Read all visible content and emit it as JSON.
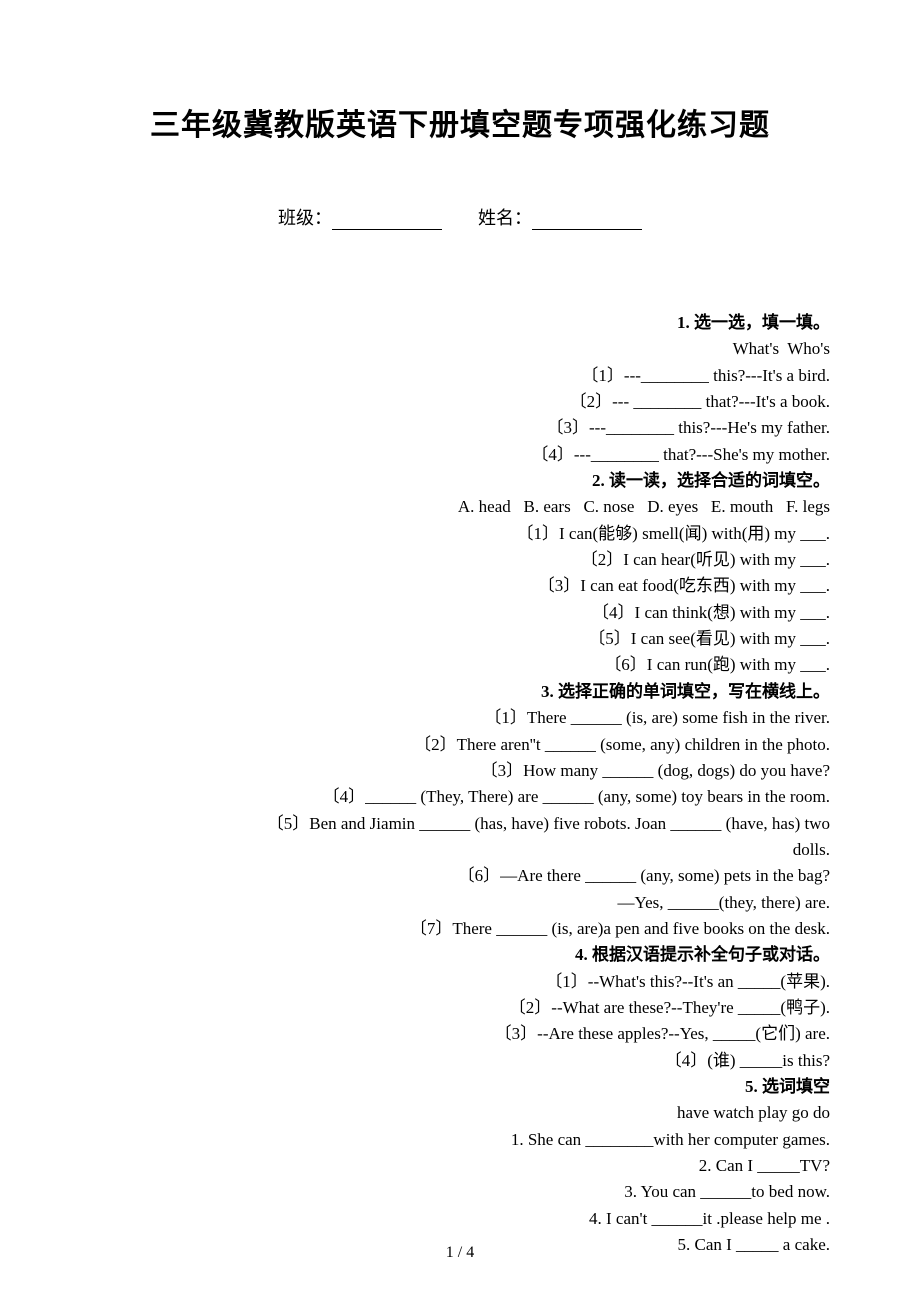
{
  "title": "三年级冀教版英语下册填空题专项强化练习题",
  "header": {
    "class_label": "班级：",
    "name_label": "姓名："
  },
  "sections": {
    "s1": {
      "heading": "1. 选一选，填一填。",
      "words": "What's  Who's",
      "q1": "〔1〕---________ this?---It's a bird.",
      "q2": "〔2〕--- ________ that?---It's a book.",
      "q3": "〔3〕---________ this?---He's my father.",
      "q4": "〔4〕---________ that?---She's my mother."
    },
    "s2": {
      "heading": "2. 读一读，选择合适的词填空。",
      "options": "A. head   B. ears   C. nose   D. eyes   E. mouth   F. legs",
      "q1": "〔1〕I can(能够) smell(闻) with(用) my ___.",
      "q2": "〔2〕I can hear(听见) with my ___.",
      "q3": "〔3〕I can eat food(吃东西) with my ___.",
      "q4": "〔4〕I can think(想) with my ___.",
      "q5": "〔5〕I can see(看见) with my ___.",
      "q6": "〔6〕I can run(跑) with my ___."
    },
    "s3": {
      "heading": "3. 选择正确的单词填空，写在横线上。",
      "q1": "〔1〕There ______ (is, are) some fish in the river.",
      "q2": "〔2〕There aren''t ______ (some, any) children in the photo.",
      "q3": "〔3〕How many ______ (dog, dogs) do you have?",
      "q4": "〔4〕______ (They, There) are ______ (any, some) toy bears in the room.",
      "q5": "〔5〕Ben and Jiamin ______ (has, have) five robots. Joan ______ (have, has) two",
      "q5b": "dolls.",
      "q6": "〔6〕—Are there ______ (any, some) pets in the bag?",
      "q6b": "—Yes, ______(they, there) are.",
      "q7": "〔7〕There ______ (is, are)a pen and five books on the desk."
    },
    "s4": {
      "heading": "4. 根据汉语提示补全句子或对话。",
      "q1": "〔1〕--What's this?--It's an _____(苹果).",
      "q2": "〔2〕--What are these?--They're _____(鸭子).",
      "q3": "〔3〕--Are these apples?--Yes, _____(它们) are.",
      "q4": "〔4〕(谁) _____is this?"
    },
    "s5": {
      "heading": "5. 选词填空",
      "words": "have watch play go do",
      "q1": "1. She can ________with her computer games.",
      "q2": "2. Can I _____TV?",
      "q3": "3. You can ______to bed now.",
      "q4": "4. I can't ______it .please help me .",
      "q5": "5. Can I _____ a cake."
    }
  },
  "page_num": "1 / 4"
}
